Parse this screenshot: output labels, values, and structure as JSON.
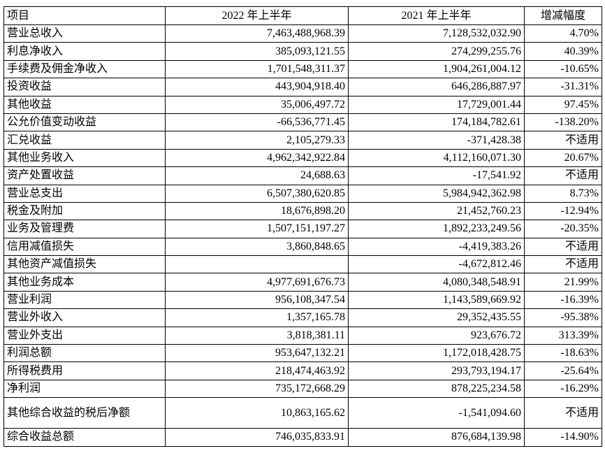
{
  "header": {
    "item": "项目",
    "y2022": "2022 年上半年",
    "y2021": "2021 年上半年",
    "change": "增减幅度"
  },
  "rows": [
    {
      "item": "营业总收入",
      "y2022": "7,463,488,968.39",
      "y2021": "7,128,532,032.90",
      "change": "4.70%"
    },
    {
      "item": "利息净收入",
      "y2022": "385,093,121.55",
      "y2021": "274,299,255.76",
      "change": "40.39%"
    },
    {
      "item": "手续费及佣金净收入",
      "y2022": "1,701,548,311.37",
      "y2021": "1,904,261,004.12",
      "change": "-10.65%"
    },
    {
      "item": "投资收益",
      "y2022": "443,904,918.40",
      "y2021": "646,286,887.97",
      "change": "-31.31%"
    },
    {
      "item": "其他收益",
      "y2022": "35,006,497.72",
      "y2021": "17,729,001.44",
      "change": "97.45%"
    },
    {
      "item": "公允价值变动收益",
      "y2022": "-66,536,771.45",
      "y2021": "174,184,782.61",
      "change": "-138.20%"
    },
    {
      "item": "汇兑收益",
      "y2022": "2,105,279.33",
      "y2021": "-371,428.38",
      "change": "不适用"
    },
    {
      "item": "其他业务收入",
      "y2022": "4,962,342,922.84",
      "y2021": "4,112,160,071.30",
      "change": "20.67%"
    },
    {
      "item": "资产处置收益",
      "y2022": "24,688.63",
      "y2021": "-17,541.92",
      "change": "不适用"
    },
    {
      "item": "营业总支出",
      "y2022": "6,507,380,620.85",
      "y2021": "5,984,942,362.98",
      "change": "8.73%"
    },
    {
      "item": "税金及附加",
      "y2022": "18,676,898.20",
      "y2021": "21,452,760.23",
      "change": "-12.94%"
    },
    {
      "item": "业务及管理费",
      "y2022": "1,507,151,197.27",
      "y2021": "1,892,233,249.56",
      "change": "-20.35%"
    },
    {
      "item": "信用减值损失",
      "y2022": "3,860,848.65",
      "y2021": "-4,419,383.26",
      "change": "不适用"
    },
    {
      "item": "其他资产减值损失",
      "y2022": "",
      "y2021": "-4,672,812.46",
      "change": "不适用"
    },
    {
      "item": "其他业务成本",
      "y2022": "4,977,691,676.73",
      "y2021": "4,080,348,548.91",
      "change": "21.99%"
    },
    {
      "item": "营业利润",
      "y2022": "956,108,347.54",
      "y2021": "1,143,589,669.92",
      "change": "-16.39%"
    },
    {
      "item": "营业外收入",
      "y2022": "1,357,165.78",
      "y2021": "29,352,435.55",
      "change": "-95.38%"
    },
    {
      "item": "营业外支出",
      "y2022": "3,818,381.11",
      "y2021": "923,676.72",
      "change": "313.39%"
    },
    {
      "item": "利润总额",
      "y2022": "953,647,132.21",
      "y2021": "1,172,018,428.75",
      "change": "-18.63%"
    },
    {
      "item": "所得税费用",
      "y2022": "218,474,463.92",
      "y2021": "293,793,194.17",
      "change": "-25.64%"
    },
    {
      "item": "净利润",
      "y2022": "735,172,668.29",
      "y2021": "878,225,234.58",
      "change": "-16.29%"
    },
    {
      "item": "其他综合收益的税后净额",
      "y2022": "10,863,165.62",
      "y2021": "-1,541,094.60",
      "change": "不适用"
    },
    {
      "item": "综合收益总额",
      "y2022": "746,035,833.91",
      "y2021": "876,684,139.98",
      "change": "-14.90%"
    }
  ]
}
